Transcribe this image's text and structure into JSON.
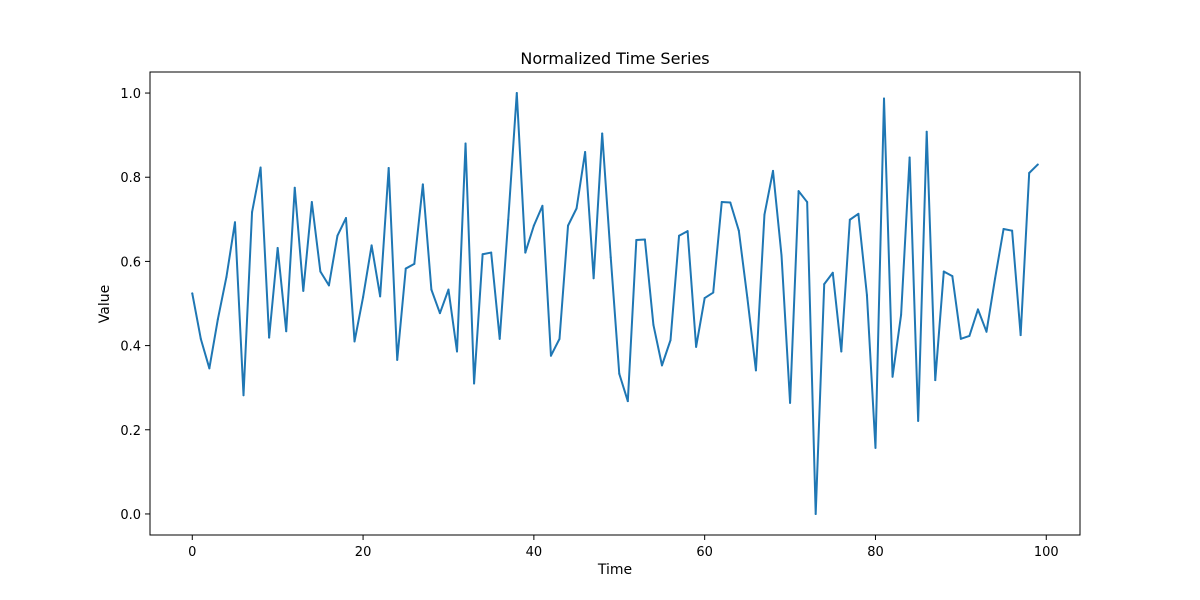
{
  "chart_data": {
    "type": "line",
    "title": "Normalized Time Series",
    "xlabel": "Time",
    "ylabel": "Value",
    "xlim": [
      -4.95,
      103.95
    ],
    "ylim": [
      -0.05,
      1.05
    ],
    "xticks": [
      0,
      20,
      40,
      60,
      80,
      100
    ],
    "yticks": [
      0.0,
      0.2,
      0.4,
      0.6,
      0.8,
      1.0
    ],
    "xtick_labels": [
      "0",
      "20",
      "40",
      "60",
      "80",
      "100"
    ],
    "ytick_labels": [
      "0.0",
      "0.2",
      "0.4",
      "0.6",
      "0.8",
      "1.0"
    ],
    "grid": false,
    "line_color": "#1f77b4",
    "series": [
      {
        "x": [
          0,
          1,
          2,
          3,
          4,
          5,
          6,
          7,
          8,
          9,
          10,
          11,
          12,
          13,
          14,
          15,
          16,
          17,
          18,
          19,
          20,
          21,
          22,
          23,
          24,
          25,
          26,
          27,
          28,
          29,
          30,
          31,
          32,
          33,
          34,
          35,
          36,
          37,
          38,
          39,
          40,
          41,
          42,
          43,
          44,
          45,
          46,
          47,
          48,
          49,
          50,
          51,
          52,
          53,
          54,
          55,
          56,
          57,
          58,
          59,
          60,
          61,
          62,
          63,
          64,
          65,
          66,
          67,
          68,
          69,
          70,
          71,
          72,
          73,
          74,
          75,
          76,
          77,
          78,
          79,
          80,
          81,
          82,
          83,
          84,
          85,
          86,
          87,
          88,
          89,
          90,
          91,
          92,
          93,
          94,
          95,
          96,
          97,
          98,
          99
        ],
        "values": [
          0.524,
          0.416,
          0.346,
          0.463,
          0.563,
          0.693,
          0.282,
          0.717,
          0.823,
          0.419,
          0.632,
          0.434,
          0.775,
          0.53,
          0.741,
          0.576,
          0.543,
          0.661,
          0.703,
          0.41,
          0.515,
          0.638,
          0.517,
          0.822,
          0.366,
          0.583,
          0.594,
          0.783,
          0.533,
          0.477,
          0.533,
          0.386,
          0.88,
          0.31,
          0.617,
          0.621,
          0.416,
          0.699,
          1.0,
          0.621,
          0.685,
          0.732,
          0.376,
          0.416,
          0.685,
          0.726,
          0.86,
          0.56,
          0.904,
          0.61,
          0.333,
          0.268,
          0.651,
          0.652,
          0.449,
          0.353,
          0.413,
          0.661,
          0.672,
          0.397,
          0.513,
          0.526,
          0.741,
          0.74,
          0.673,
          0.513,
          0.341,
          0.711,
          0.815,
          0.614,
          0.264,
          0.767,
          0.741,
          0.0,
          0.546,
          0.573,
          0.386,
          0.699,
          0.713,
          0.52,
          0.157,
          0.987,
          0.326,
          0.473,
          0.847,
          0.221,
          0.908,
          0.318,
          0.576,
          0.565,
          0.416,
          0.423,
          0.486,
          0.433,
          0.559,
          0.677,
          0.673,
          0.425,
          0.81,
          0.83
        ]
      }
    ]
  }
}
